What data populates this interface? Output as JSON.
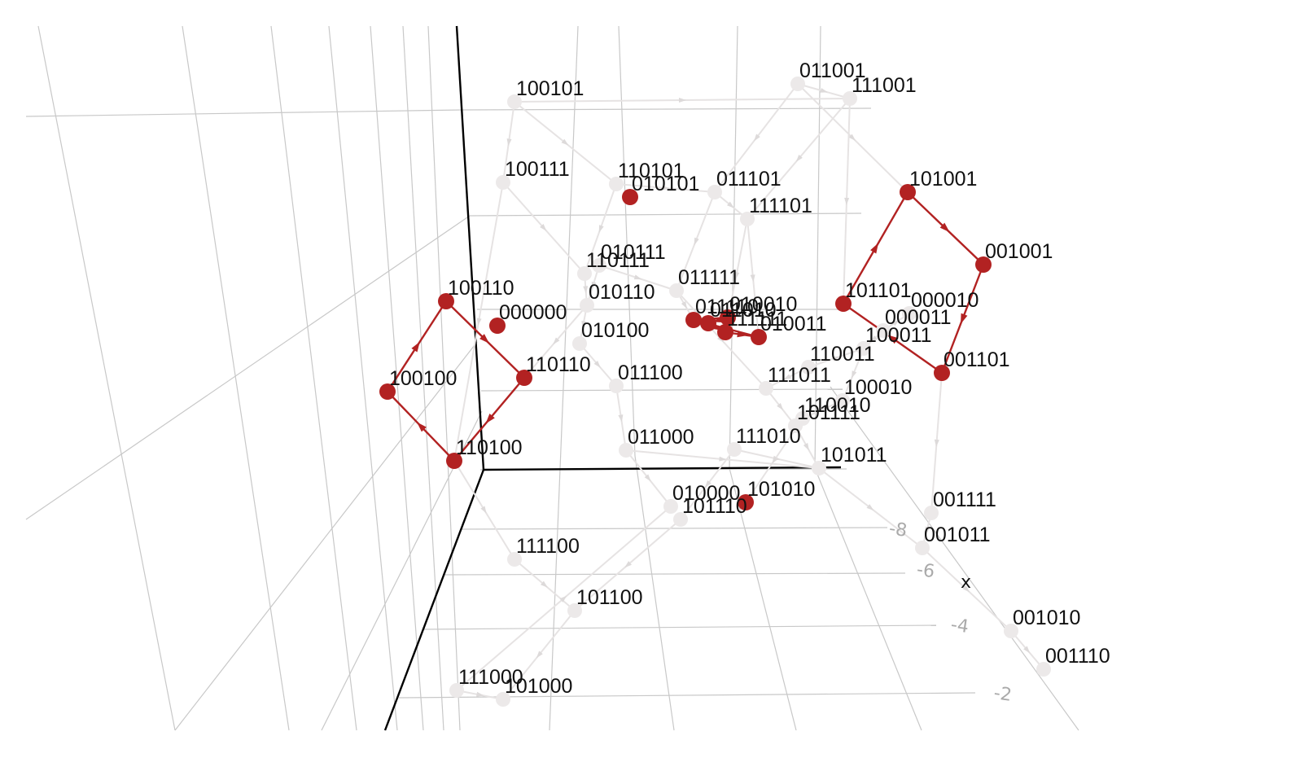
{
  "colors": {
    "highlight": "#b22222",
    "background_node": "#ece9e9",
    "background_edge": "#e6e3e3",
    "grid": "#c8c8c8",
    "axis": "#000000",
    "label": "#111111",
    "tick": "#aaaaaa"
  },
  "axis": {
    "tick_labels": [
      "-8",
      "-6",
      "-4",
      "-2"
    ],
    "partial_label": "x"
  },
  "nodes": [
    {
      "label": "100101",
      "active": false
    },
    {
      "label": "011001",
      "active": false
    },
    {
      "label": "111001",
      "active": false
    },
    {
      "label": "100111",
      "active": false
    },
    {
      "label": "110101",
      "active": false
    },
    {
      "label": "010101",
      "active": true
    },
    {
      "label": "011101",
      "active": false
    },
    {
      "label": "111101",
      "active": false
    },
    {
      "label": "101001",
      "active": true
    },
    {
      "label": "001001",
      "active": true
    },
    {
      "label": "010111",
      "active": false
    },
    {
      "label": "110111",
      "active": false
    },
    {
      "label": "011111",
      "active": false
    },
    {
      "label": "010110",
      "active": false
    },
    {
      "label": "100110",
      "active": true
    },
    {
      "label": "000000",
      "active": true
    },
    {
      "label": "010100",
      "active": false
    },
    {
      "label": "011110",
      "active": true
    },
    {
      "label": "010010",
      "active": true
    },
    {
      "label": "011010",
      "active": true
    },
    {
      "label": "111111",
      "active": true
    },
    {
      "label": "010011",
      "active": true
    },
    {
      "label": "101101",
      "active": true
    },
    {
      "label": "000010",
      "active": false
    },
    {
      "label": "000011",
      "active": false
    },
    {
      "label": "100011",
      "active": false
    },
    {
      "label": "001101",
      "active": true
    },
    {
      "label": "110011",
      "active": false
    },
    {
      "label": "111011",
      "active": false
    },
    {
      "label": "100010",
      "active": false
    },
    {
      "label": "110010",
      "active": false
    },
    {
      "label": "101111",
      "active": false
    },
    {
      "label": "100100",
      "active": true
    },
    {
      "label": "110110",
      "active": true
    },
    {
      "label": "011100",
      "active": false
    },
    {
      "label": "110100",
      "active": true
    },
    {
      "label": "101100",
      "active": false
    },
    {
      "label": "011000",
      "active": false
    },
    {
      "label": "111010",
      "active": false
    },
    {
      "label": "101011",
      "active": false
    },
    {
      "label": "010000",
      "active": false
    },
    {
      "label": "101010",
      "active": true
    },
    {
      "label": "101110",
      "active": false
    },
    {
      "label": "001111",
      "active": false
    },
    {
      "label": "001011",
      "active": false
    },
    {
      "label": "111100",
      "active": false
    },
    {
      "label": "001010",
      "active": false
    },
    {
      "label": "001110",
      "active": false
    },
    {
      "label": "111000",
      "active": false
    },
    {
      "label": "101000",
      "active": false
    }
  ]
}
